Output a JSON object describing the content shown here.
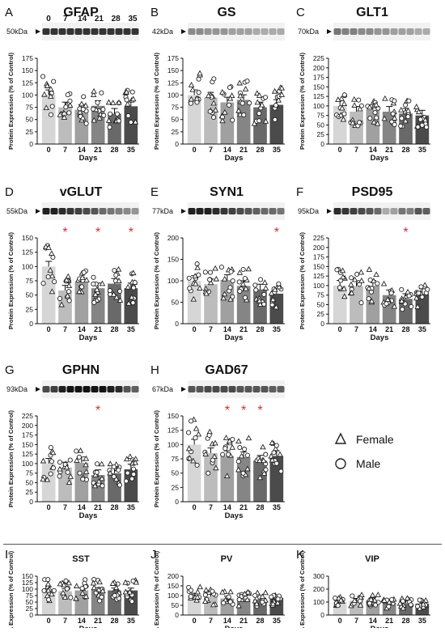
{
  "x_axis_label": "Days",
  "legend": [
    {
      "label": "Female",
      "marker": "triangle"
    },
    {
      "label": "Male",
      "marker": "circle"
    }
  ],
  "bar_colors": [
    "#d6d6d6",
    "#bcbcbc",
    "#a0a0a0",
    "#858585",
    "#696969",
    "#4b4b4b"
  ],
  "significance_color": "#e8262b",
  "chart_data": [
    {
      "type": "bar",
      "panel": "A",
      "title": "GFAP",
      "ylabel": "Protein Expression (% of Control)",
      "ylim": [
        0,
        175
      ],
      "yticks": [
        0,
        25,
        50,
        75,
        100,
        125,
        150,
        175
      ],
      "categories": [
        "0",
        "7",
        "14",
        "21",
        "28",
        "35"
      ],
      "values": [
        100,
        75,
        70,
        78,
        62,
        77
      ],
      "significant": [],
      "blot": {
        "label": "50kDa",
        "lanes_on_blot": true,
        "intensity": [
          0.85,
          0.85,
          0.85,
          0.85,
          0.85,
          0.85,
          0.85,
          0.85,
          0.85,
          0.85,
          0.85,
          0.85
        ]
      }
    },
    {
      "type": "bar",
      "panel": "B",
      "title": "GS",
      "ylabel": "Protein Expression (% of Control)",
      "ylim": [
        0,
        175
      ],
      "yticks": [
        0,
        25,
        50,
        75,
        100,
        125,
        150,
        175
      ],
      "categories": [
        "0",
        "7",
        "14",
        "21",
        "28",
        "35"
      ],
      "values": [
        100,
        95,
        85,
        90,
        75,
        80
      ],
      "significant": [],
      "blot": {
        "label": "42kDa",
        "lanes_on_blot": false,
        "intensity": [
          0.45,
          0.45,
          0.4,
          0.4,
          0.4,
          0.35,
          0.35,
          0.35,
          0.3,
          0.3,
          0.3,
          0.3
        ]
      }
    },
    {
      "type": "bar",
      "panel": "C",
      "title": "GLT1",
      "ylabel": "Protein Expression (% of Control)",
      "ylim": [
        0,
        225
      ],
      "yticks": [
        0,
        25,
        50,
        75,
        100,
        125,
        150,
        175,
        200,
        225
      ],
      "categories": [
        "0",
        "7",
        "14",
        "21",
        "28",
        "35"
      ],
      "values": [
        100,
        85,
        90,
        85,
        80,
        75
      ],
      "significant": [],
      "blot": {
        "label": "70kDa",
        "lanes_on_blot": false,
        "intensity": [
          0.55,
          0.5,
          0.5,
          0.45,
          0.45,
          0.4,
          0.4,
          0.35,
          0.35,
          0.35,
          0.3,
          0.3
        ]
      }
    },
    {
      "type": "bar",
      "panel": "D",
      "title": "vGLUT",
      "ylabel": "Protein Expression (% of Control)",
      "ylim": [
        0,
        150
      ],
      "yticks": [
        0,
        25,
        50,
        75,
        100,
        125,
        150
      ],
      "categories": [
        "0",
        "7",
        "14",
        "21",
        "28",
        "35"
      ],
      "values": [
        100,
        58,
        72,
        62,
        70,
        62
      ],
      "significant": [
        "7",
        "21",
        "35"
      ],
      "blot": {
        "label": "55kDa",
        "lanes_on_blot": false,
        "intensity": [
          0.95,
          0.95,
          0.9,
          0.85,
          0.8,
          0.75,
          0.7,
          0.6,
          0.55,
          0.5,
          0.45,
          0.4
        ]
      }
    },
    {
      "type": "bar",
      "panel": "E",
      "title": "SYN1",
      "ylabel": "Protein Expression (% of Control)",
      "ylim": [
        0,
        200
      ],
      "yticks": [
        0,
        50,
        100,
        150,
        200
      ],
      "categories": [
        "0",
        "7",
        "14",
        "21",
        "28",
        "35"
      ],
      "values": [
        100,
        92,
        102,
        88,
        80,
        70
      ],
      "significant": [
        "35"
      ],
      "blot": {
        "label": "77kDa",
        "lanes_on_blot": false,
        "intensity": [
          0.95,
          0.95,
          0.95,
          0.9,
          0.85,
          0.8,
          0.75,
          0.7,
          0.65,
          0.6,
          0.6,
          0.55
        ]
      }
    },
    {
      "type": "bar",
      "panel": "F",
      "title": "PSD95",
      "ylabel": "Protein Expression (% of Control)",
      "ylim": [
        0,
        225
      ],
      "yticks": [
        0,
        25,
        50,
        75,
        100,
        125,
        150,
        175,
        200,
        225
      ],
      "categories": [
        "0",
        "7",
        "14",
        "21",
        "28",
        "35"
      ],
      "values": [
        100,
        98,
        100,
        75,
        65,
        78
      ],
      "significant": [
        "28"
      ],
      "blot": {
        "label": "95kDa",
        "lanes_on_blot": false,
        "intensity": [
          0.9,
          0.85,
          0.8,
          0.75,
          0.7,
          0.6,
          0.3,
          0.35,
          0.55,
          0.5,
          0.7,
          0.65
        ]
      }
    },
    {
      "type": "bar",
      "panel": "G",
      "title": "GPHN",
      "ylabel": "Protein Expression (% of Control)",
      "ylim": [
        0,
        225
      ],
      "yticks": [
        0,
        25,
        50,
        75,
        100,
        125,
        150,
        175,
        200,
        225
      ],
      "categories": [
        "0",
        "7",
        "14",
        "21",
        "28",
        "35"
      ],
      "values": [
        100,
        90,
        102,
        70,
        75,
        85
      ],
      "significant": [
        "21"
      ],
      "blot": {
        "label": "93kDa",
        "lanes_on_blot": false,
        "intensity": [
          0.75,
          0.8,
          0.95,
          1.0,
          1.0,
          1.0,
          1.0,
          1.0,
          0.95,
          0.9,
          0.7,
          0.65
        ]
      }
    },
    {
      "type": "bar",
      "panel": "H",
      "title": "GAD67",
      "ylabel": "Protein Expression (% of Control)",
      "ylim": [
        0,
        150
      ],
      "yticks": [
        0,
        25,
        50,
        75,
        100,
        125,
        150
      ],
      "categories": [
        "0",
        "7",
        "14",
        "21",
        "28",
        "35"
      ],
      "values": [
        100,
        85,
        80,
        78,
        72,
        80
      ],
      "significant": [
        "14",
        "21",
        "28"
      ],
      "blot": {
        "label": "67kDa",
        "lanes_on_blot": false,
        "intensity": [
          0.7,
          0.7,
          0.75,
          0.75,
          0.75,
          0.75,
          0.7,
          0.7,
          0.7,
          0.7,
          0.65,
          0.65
        ]
      }
    },
    {
      "type": "bar",
      "panel": "I",
      "title": "SST",
      "ylabel": "RNA Expression (% of Control)",
      "ylim": [
        0,
        150
      ],
      "yticks": [
        0,
        25,
        50,
        75,
        100,
        125,
        150
      ],
      "categories": [
        "0",
        "7",
        "14",
        "21",
        "28",
        "35"
      ],
      "values": [
        100,
        92,
        95,
        97,
        95,
        95
      ],
      "significant": []
    },
    {
      "type": "bar",
      "panel": "J",
      "title": "PV",
      "ylabel": "RNA Expression (% of Control)",
      "ylim": [
        0,
        200
      ],
      "yticks": [
        0,
        50,
        100,
        150,
        200
      ],
      "categories": [
        "0",
        "7",
        "14",
        "21",
        "28",
        "35"
      ],
      "values": [
        100,
        95,
        85,
        85,
        80,
        88
      ],
      "significant": []
    },
    {
      "type": "bar",
      "panel": "K",
      "title": "VIP",
      "ylabel": "RNA Expression (% of Control)",
      "ylim": [
        0,
        300
      ],
      "yticks": [
        0,
        100,
        200,
        300
      ],
      "categories": [
        "0",
        "7",
        "14",
        "21",
        "28",
        "35"
      ],
      "values": [
        100,
        110,
        115,
        95,
        90,
        88
      ],
      "significant": []
    }
  ]
}
